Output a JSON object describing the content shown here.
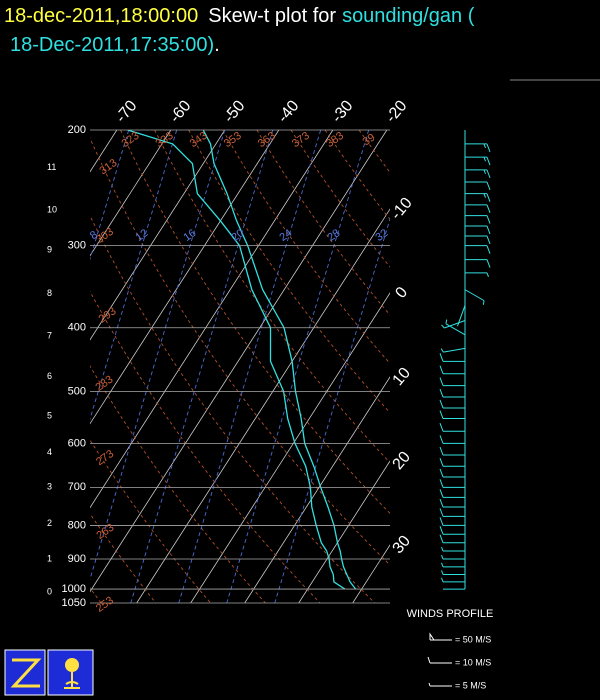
{
  "title": {
    "time": "18-dec-2011,18:00:00",
    "text": "Skew-t plot for",
    "source": "sounding/gan (",
    "valid": "18-Dec-2011,17:35:00)",
    "end": "."
  },
  "chart_data": {
    "type": "skewt",
    "ylim": [
      1050,
      200
    ],
    "log_y": true,
    "yticks": [
      200,
      300,
      400,
      500,
      600,
      700,
      800,
      900,
      1000,
      1050
    ],
    "xticks": [
      -70,
      -60,
      -50,
      -40,
      -30,
      -20,
      -10,
      0,
      10,
      20,
      30
    ],
    "height_ticks": [
      0,
      1,
      2,
      3,
      4,
      5,
      6,
      7,
      8,
      9,
      10,
      11
    ],
    "height_pressures": [
      1010,
      900,
      795,
      700,
      620,
      545,
      475,
      412,
      355,
      305,
      265,
      228
    ],
    "theta_labels": [
      253,
      263,
      273,
      283,
      293,
      303,
      313,
      323,
      333,
      343,
      353,
      363,
      373,
      383,
      {
        "value": 393,
        "label": "39"
      }
    ],
    "mixing_ratio_labels": [
      8,
      12,
      16,
      20,
      24,
      28,
      32
    ],
    "pressure": [
      1000,
      975,
      950,
      925,
      900,
      875,
      850,
      800,
      750,
      700,
      650,
      600,
      550,
      500,
      450,
      400,
      350,
      300,
      275,
      250,
      225,
      210,
      200
    ],
    "series": [
      {
        "color": "#30e0e0",
        "values": [
          28.9,
          27,
          25.5,
          24,
          22.7,
          21.5,
          20,
          17.3,
          14,
          10.3,
          6.5,
          2.1,
          -1.5,
          -5.8,
          -10,
          -15.5,
          -24,
          -32,
          -37,
          -42,
          -48,
          -51,
          -54
        ]
      },
      {
        "color": "#30e0e0",
        "values": [
          26.9,
          24,
          23,
          21.5,
          20.4,
          19,
          17,
          14,
          11,
          8.4,
          5,
          0.3,
          -4,
          -8,
          -14,
          -18,
          -26,
          -33.5,
          -40,
          -47.5,
          -52,
          -58,
          -68
        ]
      }
    ],
    "winds": {
      "color": "#30e0e0",
      "pressure": [
        210,
        220,
        230,
        240,
        250,
        260,
        270,
        280,
        290,
        300,
        315,
        330,
        350,
        370,
        390,
        410,
        430,
        450,
        470,
        490,
        510,
        530,
        550,
        575,
        600,
        625,
        650,
        675,
        700,
        725,
        750,
        775,
        800,
        825,
        850,
        875,
        900,
        925,
        950,
        975,
        1000
      ],
      "direction": [
        90,
        90,
        90,
        90,
        90,
        90,
        90,
        90,
        90,
        90,
        90,
        90,
        120,
        200,
        250,
        300,
        260,
        270,
        270,
        270,
        270,
        270,
        270,
        270,
        270,
        270,
        270,
        270,
        270,
        270,
        270,
        270,
        270,
        270,
        270,
        270,
        270,
        270,
        270,
        270,
        270
      ],
      "speed": [
        15,
        16,
        15,
        14,
        15,
        14,
        13,
        12,
        12,
        11,
        10,
        8,
        5,
        4,
        6,
        7,
        8,
        10,
        11,
        12,
        12,
        13,
        13,
        14,
        14,
        14,
        13,
        13,
        12,
        12,
        12,
        11,
        11,
        10,
        10,
        9,
        8,
        7,
        6,
        5,
        4
      ]
    },
    "legend": {
      "title": "WINDS PROFILE",
      "items": [
        {
          "speed": 50,
          "label": "= 50 M/S"
        },
        {
          "speed": 10,
          "label": "= 10 M/S"
        },
        {
          "speed": 5,
          "label": "= 5 M/S"
        }
      ]
    }
  }
}
